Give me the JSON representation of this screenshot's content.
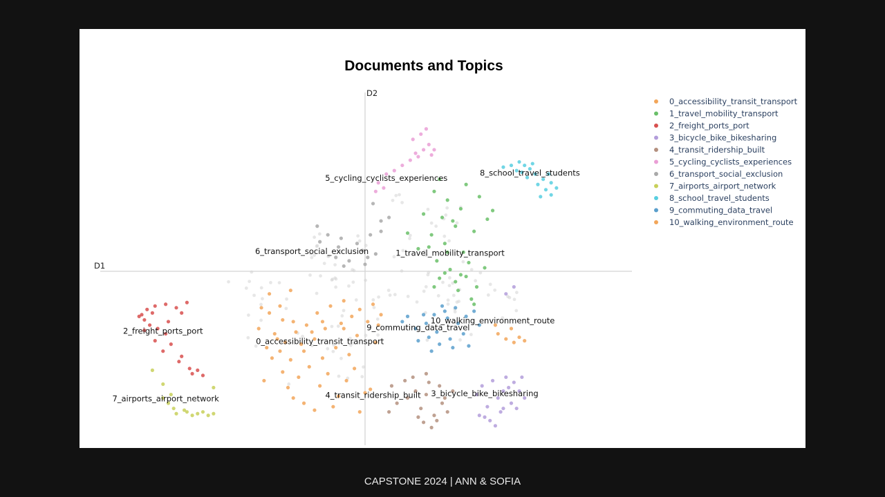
{
  "footer": {
    "text": "CAPSTONE 2024 | ANN & SOFIA"
  },
  "chart_data": {
    "type": "scatter",
    "title": "Documents and Topics",
    "xlabel": "D1",
    "ylabel": "D2",
    "xlim": [
      -10,
      10
    ],
    "ylim": [
      -10,
      10
    ],
    "legend_position": "right",
    "unassigned_color": "#d3d3d3",
    "series": [
      {
        "name": "0_accessibility_transit_transport",
        "color": "#f2a65a",
        "label": "0_accessibility_transit_transport",
        "label_at": [
          -1.7,
          -4.2
        ],
        "points": [
          [
            -3.9,
            -2.1
          ],
          [
            -3.6,
            -2.4
          ],
          [
            -3.1,
            -2.8
          ],
          [
            -2.7,
            -2.9
          ],
          [
            -2.2,
            -3.1
          ],
          [
            -1.8,
            -2.4
          ],
          [
            -1.3,
            -2.0
          ],
          [
            -0.8,
            -1.7
          ],
          [
            -0.5,
            -2.6
          ],
          [
            -0.2,
            -2.2
          ],
          [
            0.3,
            -1.9
          ],
          [
            0.6,
            -2.5
          ],
          [
            -3.4,
            -3.6
          ],
          [
            -3.0,
            -4.1
          ],
          [
            -2.6,
            -3.5
          ],
          [
            -2.3,
            -4.6
          ],
          [
            -1.9,
            -3.9
          ],
          [
            -1.5,
            -3.3
          ],
          [
            -1.1,
            -4.4
          ],
          [
            -0.9,
            -3.0
          ],
          [
            -0.6,
            -4.8
          ],
          [
            -0.3,
            -3.7
          ],
          [
            0.1,
            -2.9
          ],
          [
            0.4,
            -4.1
          ],
          [
            -4.0,
            -3.3
          ],
          [
            -3.7,
            -4.4
          ],
          [
            -3.3,
            -3.9
          ],
          [
            -2.8,
            -5.1
          ],
          [
            -2.5,
            -6.1
          ],
          [
            -2.1,
            -5.5
          ],
          [
            -1.7,
            -6.6
          ],
          [
            -1.4,
            -5.9
          ],
          [
            -1.0,
            -7.2
          ],
          [
            -0.7,
            -6.3
          ],
          [
            -0.4,
            -5.6
          ],
          [
            0.0,
            -7.0
          ],
          [
            -2.9,
            -6.7
          ],
          [
            -2.7,
            -7.3
          ],
          [
            -3.1,
            -5.8
          ],
          [
            -3.5,
            -5.0
          ],
          [
            -3.8,
            -6.3
          ],
          [
            -2.3,
            -7.6
          ],
          [
            -1.9,
            -8.0
          ],
          [
            -1.2,
            -7.8
          ],
          [
            -0.2,
            -8.1
          ],
          [
            0.2,
            -6.8
          ],
          [
            -2.4,
            -4.2
          ],
          [
            -1.6,
            -5.0
          ],
          [
            -3.2,
            -2.0
          ],
          [
            -2.8,
            -1.1
          ],
          [
            -1.6,
            -2.9
          ],
          [
            -0.8,
            -3.3
          ],
          [
            0.5,
            -3.1
          ],
          [
            -3.6,
            -1.3
          ],
          [
            -2.0,
            -3.5
          ],
          [
            -3.2,
            -4.6
          ]
        ]
      },
      {
        "name": "1_travel_mobility_transport",
        "color": "#6abf69",
        "label": "1_travel_mobility_transport",
        "label_at": [
          3.2,
          0.9
        ],
        "points": [
          [
            2.6,
            4.6
          ],
          [
            3.1,
            4.1
          ],
          [
            3.6,
            3.6
          ],
          [
            2.9,
            3.1
          ],
          [
            3.4,
            2.6
          ],
          [
            2.5,
            2.1
          ],
          [
            3.0,
            1.6
          ],
          [
            3.7,
            1.1
          ],
          [
            4.1,
            2.3
          ],
          [
            4.6,
            3.0
          ],
          [
            4.3,
            4.3
          ],
          [
            3.8,
            5.0
          ],
          [
            2.7,
            0.6
          ],
          [
            3.2,
            0.1
          ],
          [
            2.8,
            -0.4
          ],
          [
            3.4,
            -0.6
          ],
          [
            3.8,
            -0.3
          ],
          [
            4.2,
            -0.9
          ],
          [
            4.0,
            -1.6
          ],
          [
            3.5,
            -1.1
          ],
          [
            2.6,
            -0.9
          ],
          [
            2.0,
            1.3
          ],
          [
            1.6,
            2.2
          ],
          [
            3.0,
            -0.1
          ],
          [
            4.5,
            0.2
          ],
          [
            3.3,
            2.9
          ],
          [
            2.4,
            1.4
          ],
          [
            3.9,
            0.5
          ],
          [
            4.1,
            -1.9
          ],
          [
            2.2,
            3.3
          ],
          [
            2.8,
            5.3
          ],
          [
            4.8,
            3.5
          ],
          [
            3.1,
            1.1
          ],
          [
            3.6,
            -0.2
          ]
        ]
      },
      {
        "name": "2_freight_ports_port",
        "color": "#d8504f",
        "label": "2_freight_ports_port",
        "label_at": [
          -7.6,
          -3.6
        ],
        "points": [
          [
            -8.4,
            -2.5
          ],
          [
            -8.2,
            -2.2
          ],
          [
            -8.0,
            -2.4
          ],
          [
            -8.3,
            -2.8
          ],
          [
            -8.1,
            -3.1
          ],
          [
            -7.9,
            -2.0
          ],
          [
            -7.5,
            -1.9
          ],
          [
            -7.1,
            -2.1
          ],
          [
            -6.7,
            -1.8
          ],
          [
            -6.9,
            -2.4
          ],
          [
            -7.4,
            -2.9
          ],
          [
            -7.8,
            -3.3
          ],
          [
            -7.5,
            -3.6
          ],
          [
            -7.3,
            -4.2
          ],
          [
            -7.6,
            -4.6
          ],
          [
            -7.0,
            -5.2
          ],
          [
            -6.6,
            -5.6
          ],
          [
            -6.3,
            -5.7
          ],
          [
            -6.1,
            -6.0
          ],
          [
            -6.5,
            -5.9
          ],
          [
            -8.5,
            -2.6
          ],
          [
            -8.3,
            -3.4
          ],
          [
            -7.9,
            -4.0
          ],
          [
            -6.9,
            -4.9
          ]
        ]
      },
      {
        "name": "3_bicycle_bike_bikesharing",
        "color": "#b39ddb",
        "label": "3_bicycle_bike_bikesharing",
        "label_at": [
          4.5,
          -7.2
        ],
        "points": [
          [
            4.4,
            -6.6
          ],
          [
            4.8,
            -6.3
          ],
          [
            5.2,
            -6.9
          ],
          [
            5.6,
            -6.4
          ],
          [
            5.0,
            -7.3
          ],
          [
            4.6,
            -7.8
          ],
          [
            4.3,
            -8.3
          ],
          [
            4.7,
            -8.6
          ],
          [
            5.1,
            -8.1
          ],
          [
            5.5,
            -7.6
          ],
          [
            5.8,
            -6.9
          ],
          [
            6.0,
            -7.3
          ],
          [
            5.3,
            -6.1
          ],
          [
            4.9,
            -8.9
          ],
          [
            4.5,
            -8.4
          ],
          [
            5.4,
            -6.7
          ],
          [
            5.9,
            -6.1
          ],
          [
            5.2,
            -7.9
          ],
          [
            4.2,
            -7.1
          ],
          [
            5.7,
            -7.9
          ],
          [
            5.3,
            -1.3
          ],
          [
            5.6,
            -0.9
          ]
        ]
      },
      {
        "name": "4_transit_ridership_built",
        "color": "#b4907f",
        "label": "4_transit_ridership_built",
        "label_at": [
          0.3,
          -7.3
        ],
        "points": [
          [
            1.0,
            -6.6
          ],
          [
            1.5,
            -6.3
          ],
          [
            1.9,
            -6.9
          ],
          [
            2.4,
            -6.4
          ],
          [
            2.8,
            -6.6
          ],
          [
            2.3,
            -7.1
          ],
          [
            2.1,
            -7.9
          ],
          [
            2.6,
            -8.3
          ],
          [
            2.9,
            -7.6
          ],
          [
            3.1,
            -8.1
          ],
          [
            2.7,
            -8.6
          ],
          [
            2.5,
            -9.0
          ],
          [
            2.0,
            -8.4
          ],
          [
            1.6,
            -7.3
          ],
          [
            1.2,
            -7.6
          ],
          [
            0.9,
            -8.1
          ],
          [
            3.3,
            -6.9
          ],
          [
            3.0,
            -7.3
          ],
          [
            2.2,
            -8.7
          ],
          [
            1.8,
            -6.1
          ],
          [
            2.3,
            -5.9
          ]
        ]
      },
      {
        "name": "5_cycling_cyclists_experiences",
        "color": "#ea9fd6",
        "label": "5_cycling_cyclists_experiences",
        "label_at": [
          0.8,
          5.2
        ],
        "points": [
          [
            1.8,
            7.6
          ],
          [
            2.1,
            7.9
          ],
          [
            2.4,
            7.3
          ],
          [
            2.2,
            7.0
          ],
          [
            1.9,
            6.8
          ],
          [
            2.6,
            7.0
          ],
          [
            1.7,
            6.4
          ],
          [
            1.4,
            6.1
          ],
          [
            1.1,
            5.8
          ],
          [
            0.8,
            5.6
          ],
          [
            0.5,
            5.1
          ],
          [
            0.4,
            4.6
          ],
          [
            0.7,
            4.8
          ],
          [
            2.3,
            8.2
          ],
          [
            2.0,
            6.6
          ],
          [
            2.5,
            6.7
          ]
        ]
      },
      {
        "name": "6_transport_social_exclusion",
        "color": "#a9a9a9",
        "label": "6_transport_social_exclusion",
        "label_at": [
          -2.0,
          1.0
        ],
        "points": [
          [
            -1.8,
            2.6
          ],
          [
            -1.4,
            2.1
          ],
          [
            -1.0,
            1.4
          ],
          [
            -1.1,
            0.8
          ],
          [
            -0.6,
            0.6
          ],
          [
            -0.3,
            1.6
          ],
          [
            0.2,
            2.1
          ],
          [
            0.6,
            2.9
          ],
          [
            0.9,
            3.1
          ],
          [
            0.4,
            1.0
          ],
          [
            0.0,
            0.4
          ],
          [
            0.3,
            3.9
          ],
          [
            0.6,
            2.3
          ],
          [
            -0.9,
            1.9
          ],
          [
            -0.1,
            1.2
          ],
          [
            -1.7,
            1.7
          ],
          [
            -0.8,
            0.3
          ],
          [
            0.1,
            0.8
          ]
        ]
      },
      {
        "name": "7_airports_airport_network",
        "color": "#c8d05a",
        "label": "7_airports_airport_network",
        "label_at": [
          -7.5,
          -7.5
        ],
        "points": [
          [
            -7.4,
            -7.6
          ],
          [
            -7.2,
            -7.9
          ],
          [
            -7.1,
            -8.2
          ],
          [
            -6.8,
            -8.0
          ],
          [
            -6.5,
            -8.3
          ],
          [
            -6.3,
            -8.2
          ],
          [
            -6.1,
            -8.1
          ],
          [
            -5.9,
            -8.3
          ],
          [
            -5.7,
            -8.2
          ],
          [
            -7.6,
            -7.3
          ],
          [
            -7.3,
            -7.1
          ],
          [
            -7.6,
            -6.5
          ],
          [
            -5.7,
            -6.7
          ],
          [
            -8.0,
            -5.7
          ],
          [
            -6.7,
            -8.1
          ]
        ]
      },
      {
        "name": "8_school_travel_students",
        "color": "#58cfe0",
        "label": "8_school_travel_students",
        "label_at": [
          6.2,
          5.5
        ],
        "points": [
          [
            5.2,
            6.0
          ],
          [
            5.5,
            6.1
          ],
          [
            5.8,
            6.3
          ],
          [
            6.0,
            6.1
          ],
          [
            6.2,
            5.9
          ],
          [
            6.4,
            5.6
          ],
          [
            6.1,
            5.4
          ],
          [
            6.7,
            5.3
          ],
          [
            6.9,
            5.6
          ],
          [
            7.0,
            5.1
          ],
          [
            6.8,
            4.7
          ],
          [
            6.6,
            4.3
          ],
          [
            7.2,
            4.8
          ],
          [
            7.0,
            4.4
          ],
          [
            6.3,
            6.2
          ],
          [
            5.9,
            5.7
          ],
          [
            6.5,
            5.0
          ],
          [
            5.7,
            5.8
          ]
        ]
      },
      {
        "name": "9_commuting_data_travel",
        "color": "#5a9fcc",
        "label": "9_commuting_data_travel",
        "label_at": [
          2.0,
          -3.4
        ],
        "points": [
          [
            1.4,
            -2.9
          ],
          [
            1.9,
            -3.3
          ],
          [
            2.3,
            -3.0
          ],
          [
            2.7,
            -3.5
          ],
          [
            3.1,
            -2.7
          ],
          [
            3.5,
            -3.0
          ],
          [
            3.2,
            -3.9
          ],
          [
            2.8,
            -4.2
          ],
          [
            2.4,
            -3.8
          ],
          [
            2.0,
            -4.0
          ],
          [
            2.6,
            -2.5
          ],
          [
            3.0,
            -2.3
          ],
          [
            3.4,
            -2.1
          ],
          [
            3.8,
            -2.6
          ],
          [
            4.3,
            -3.1
          ],
          [
            4.1,
            -2.3
          ],
          [
            2.5,
            -4.6
          ],
          [
            3.3,
            -4.4
          ],
          [
            3.7,
            -3.6
          ],
          [
            1.6,
            -2.6
          ],
          [
            2.2,
            -2.5
          ],
          [
            2.9,
            -2.0
          ],
          [
            3.9,
            -4.3
          ]
        ]
      },
      {
        "name": "10_walking_environment_route",
        "color": "#f2a65a",
        "label": "10_walking_environment_route",
        "label_at": [
          4.8,
          -3.0
        ],
        "points": [
          [
            5.0,
            -3.6
          ],
          [
            5.3,
            -3.9
          ],
          [
            5.6,
            -4.1
          ],
          [
            5.8,
            -3.8
          ],
          [
            5.5,
            -3.3
          ],
          [
            6.0,
            -4.0
          ],
          [
            4.9,
            -3.1
          ]
        ]
      }
    ]
  }
}
